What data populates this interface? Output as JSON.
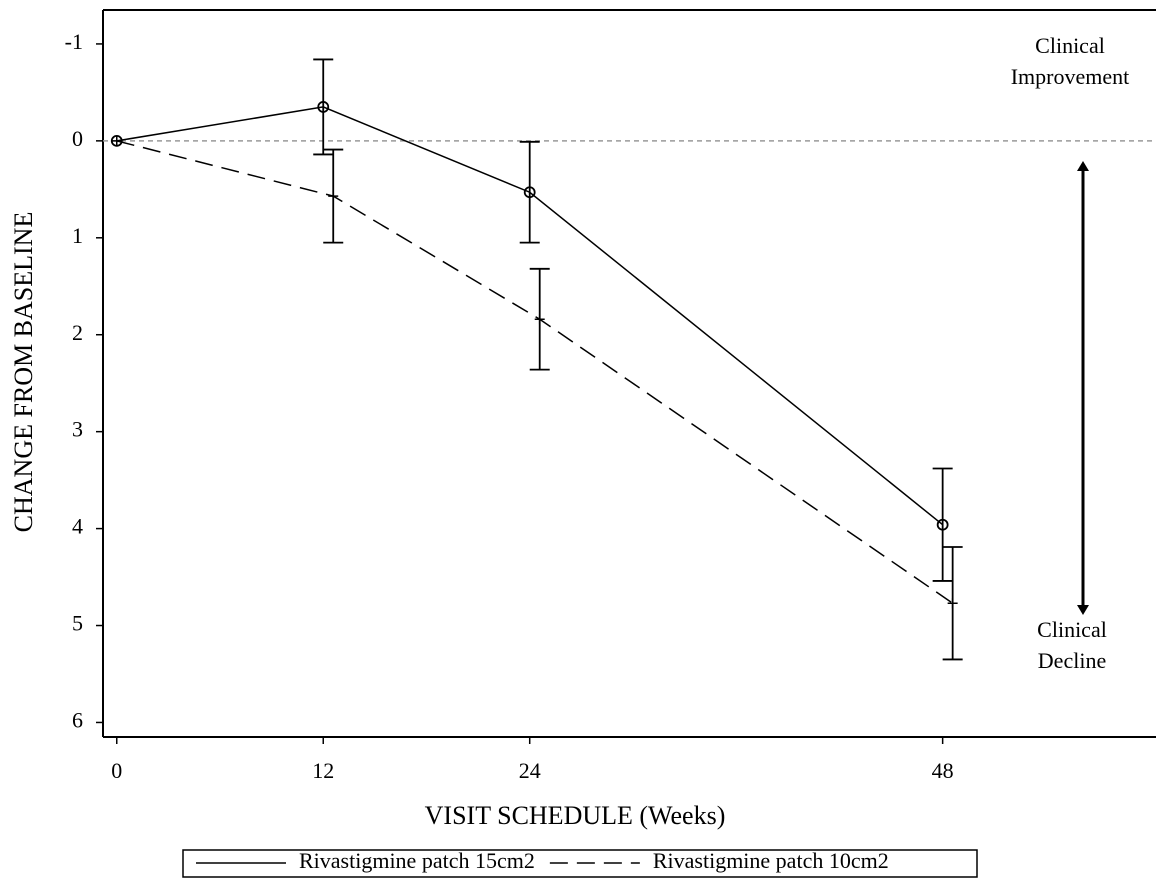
{
  "chart_data": {
    "type": "line",
    "x_label": "VISIT SCHEDULE (Weeks)",
    "y_label": "CHANGE FROM BASELINE",
    "x": [
      0,
      12,
      24,
      48
    ],
    "xlim": [
      -0.8,
      60.4
    ],
    "xticks": [
      0,
      12,
      24,
      48
    ],
    "ylim": [
      -1.35,
      6.15
    ],
    "yticks": [
      -1,
      0,
      1,
      2,
      3,
      4,
      5,
      6
    ],
    "y_inverted": true,
    "reference_line": 0,
    "reference_color": "#999999",
    "series": [
      {
        "name": "Rivastigmine patch 15cm2",
        "color": "#000000",
        "dash": "solid",
        "marker": "circle",
        "values": [
          0,
          -0.35,
          0.53,
          3.96
        ],
        "errors": [
          null,
          0.49,
          0.52,
          0.58
        ]
      },
      {
        "name": "Rivastigmine patch 10cm2",
        "color": "#000000",
        "dash": "dashed",
        "marker": "plus",
        "values": [
          0,
          0.57,
          1.84,
          4.77
        ],
        "errors": [
          null,
          0.48,
          0.52,
          0.58
        ]
      }
    ],
    "annotations": [
      {
        "lines": [
          "Clinical",
          "Improvement"
        ]
      },
      {
        "lines": [
          "Clinical",
          "Decline"
        ]
      }
    ]
  }
}
